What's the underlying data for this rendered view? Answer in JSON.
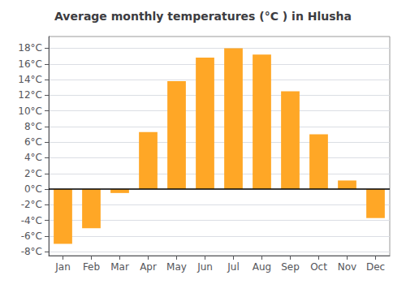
{
  "chart_data": {
    "type": "bar",
    "title": "Average monthly temperatures (°C ) in Hlusha",
    "categories": [
      "Jan",
      "Feb",
      "Mar",
      "Apr",
      "May",
      "Jun",
      "Jul",
      "Aug",
      "Sep",
      "Oct",
      "Nov",
      "Dec"
    ],
    "values": [
      -7.0,
      -5.0,
      -0.5,
      7.3,
      13.8,
      16.8,
      18.0,
      17.2,
      12.5,
      7.0,
      1.1,
      -3.7
    ],
    "color": "#FFA726",
    "ylim": [
      -8.5,
      19.5
    ],
    "yticks": [
      {
        "value": -8,
        "label": "-8°C"
      },
      {
        "value": -6,
        "label": "-6°C"
      },
      {
        "value": -4,
        "label": "-4°C"
      },
      {
        "value": -2,
        "label": "-2°C"
      },
      {
        "value": 0,
        "label": "0°C"
      },
      {
        "value": 2,
        "label": "2°C"
      },
      {
        "value": 4,
        "label": "4°C"
      },
      {
        "value": 6,
        "label": "6°C"
      },
      {
        "value": 8,
        "label": "8°C"
      },
      {
        "value": 10,
        "label": "10°C"
      },
      {
        "value": 12,
        "label": "12°C"
      },
      {
        "value": 14,
        "label": "14°C"
      },
      {
        "value": 16,
        "label": "16°C"
      },
      {
        "value": 18,
        "label": "18°C"
      }
    ],
    "grid": true
  }
}
